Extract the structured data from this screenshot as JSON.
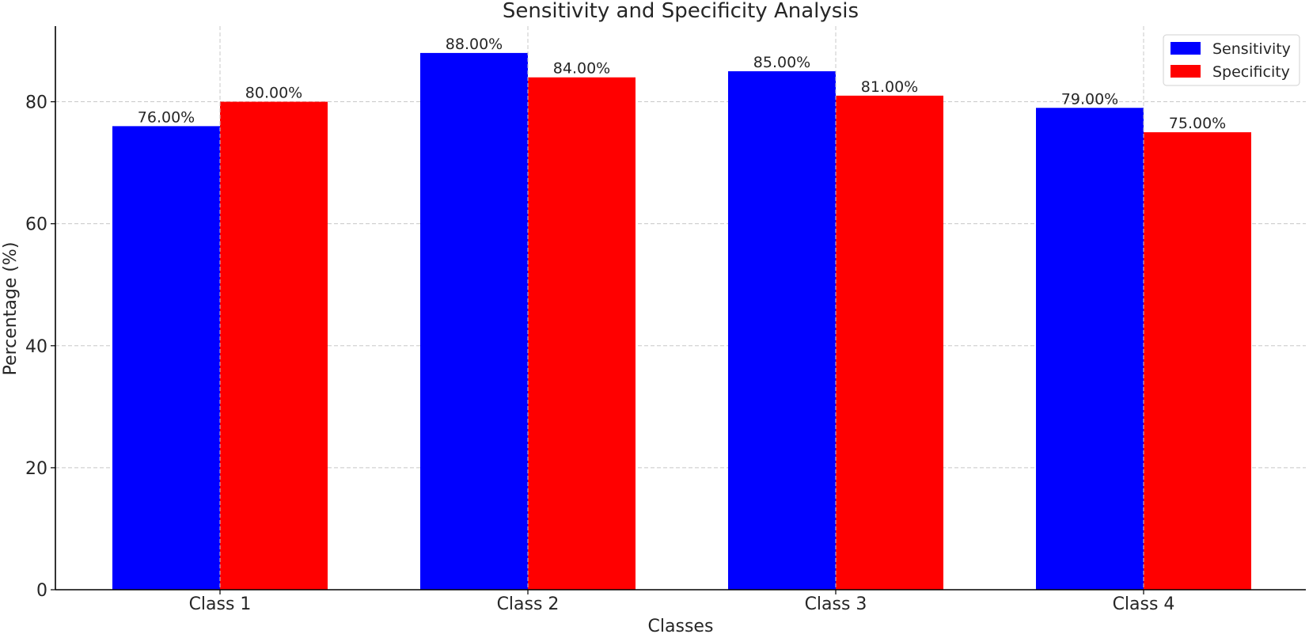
{
  "chart_data": {
    "type": "bar",
    "title": "Sensitivity and Specificity Analysis",
    "xlabel": "Classes",
    "ylabel": "Percentage (%)",
    "categories": [
      "Class 1",
      "Class 2",
      "Class 3",
      "Class 4"
    ],
    "series": [
      {
        "name": "Sensitivity",
        "color": "#0000ff",
        "values": [
          76,
          88,
          85,
          79
        ],
        "labels": [
          "76.00%",
          "88.00%",
          "85.00%",
          "79.00%"
        ]
      },
      {
        "name": "Specificity",
        "color": "#ff0000",
        "values": [
          80,
          84,
          81,
          75
        ],
        "labels": [
          "80.00%",
          "84.00%",
          "81.00%",
          "75.00%"
        ]
      }
    ],
    "ylim": [
      0,
      92.4
    ],
    "yticks": [
      0,
      20,
      40,
      60,
      80
    ],
    "ytick_labels": [
      "0",
      "20",
      "40",
      "60",
      "80"
    ],
    "grid": true,
    "legend_position": "top-right"
  }
}
